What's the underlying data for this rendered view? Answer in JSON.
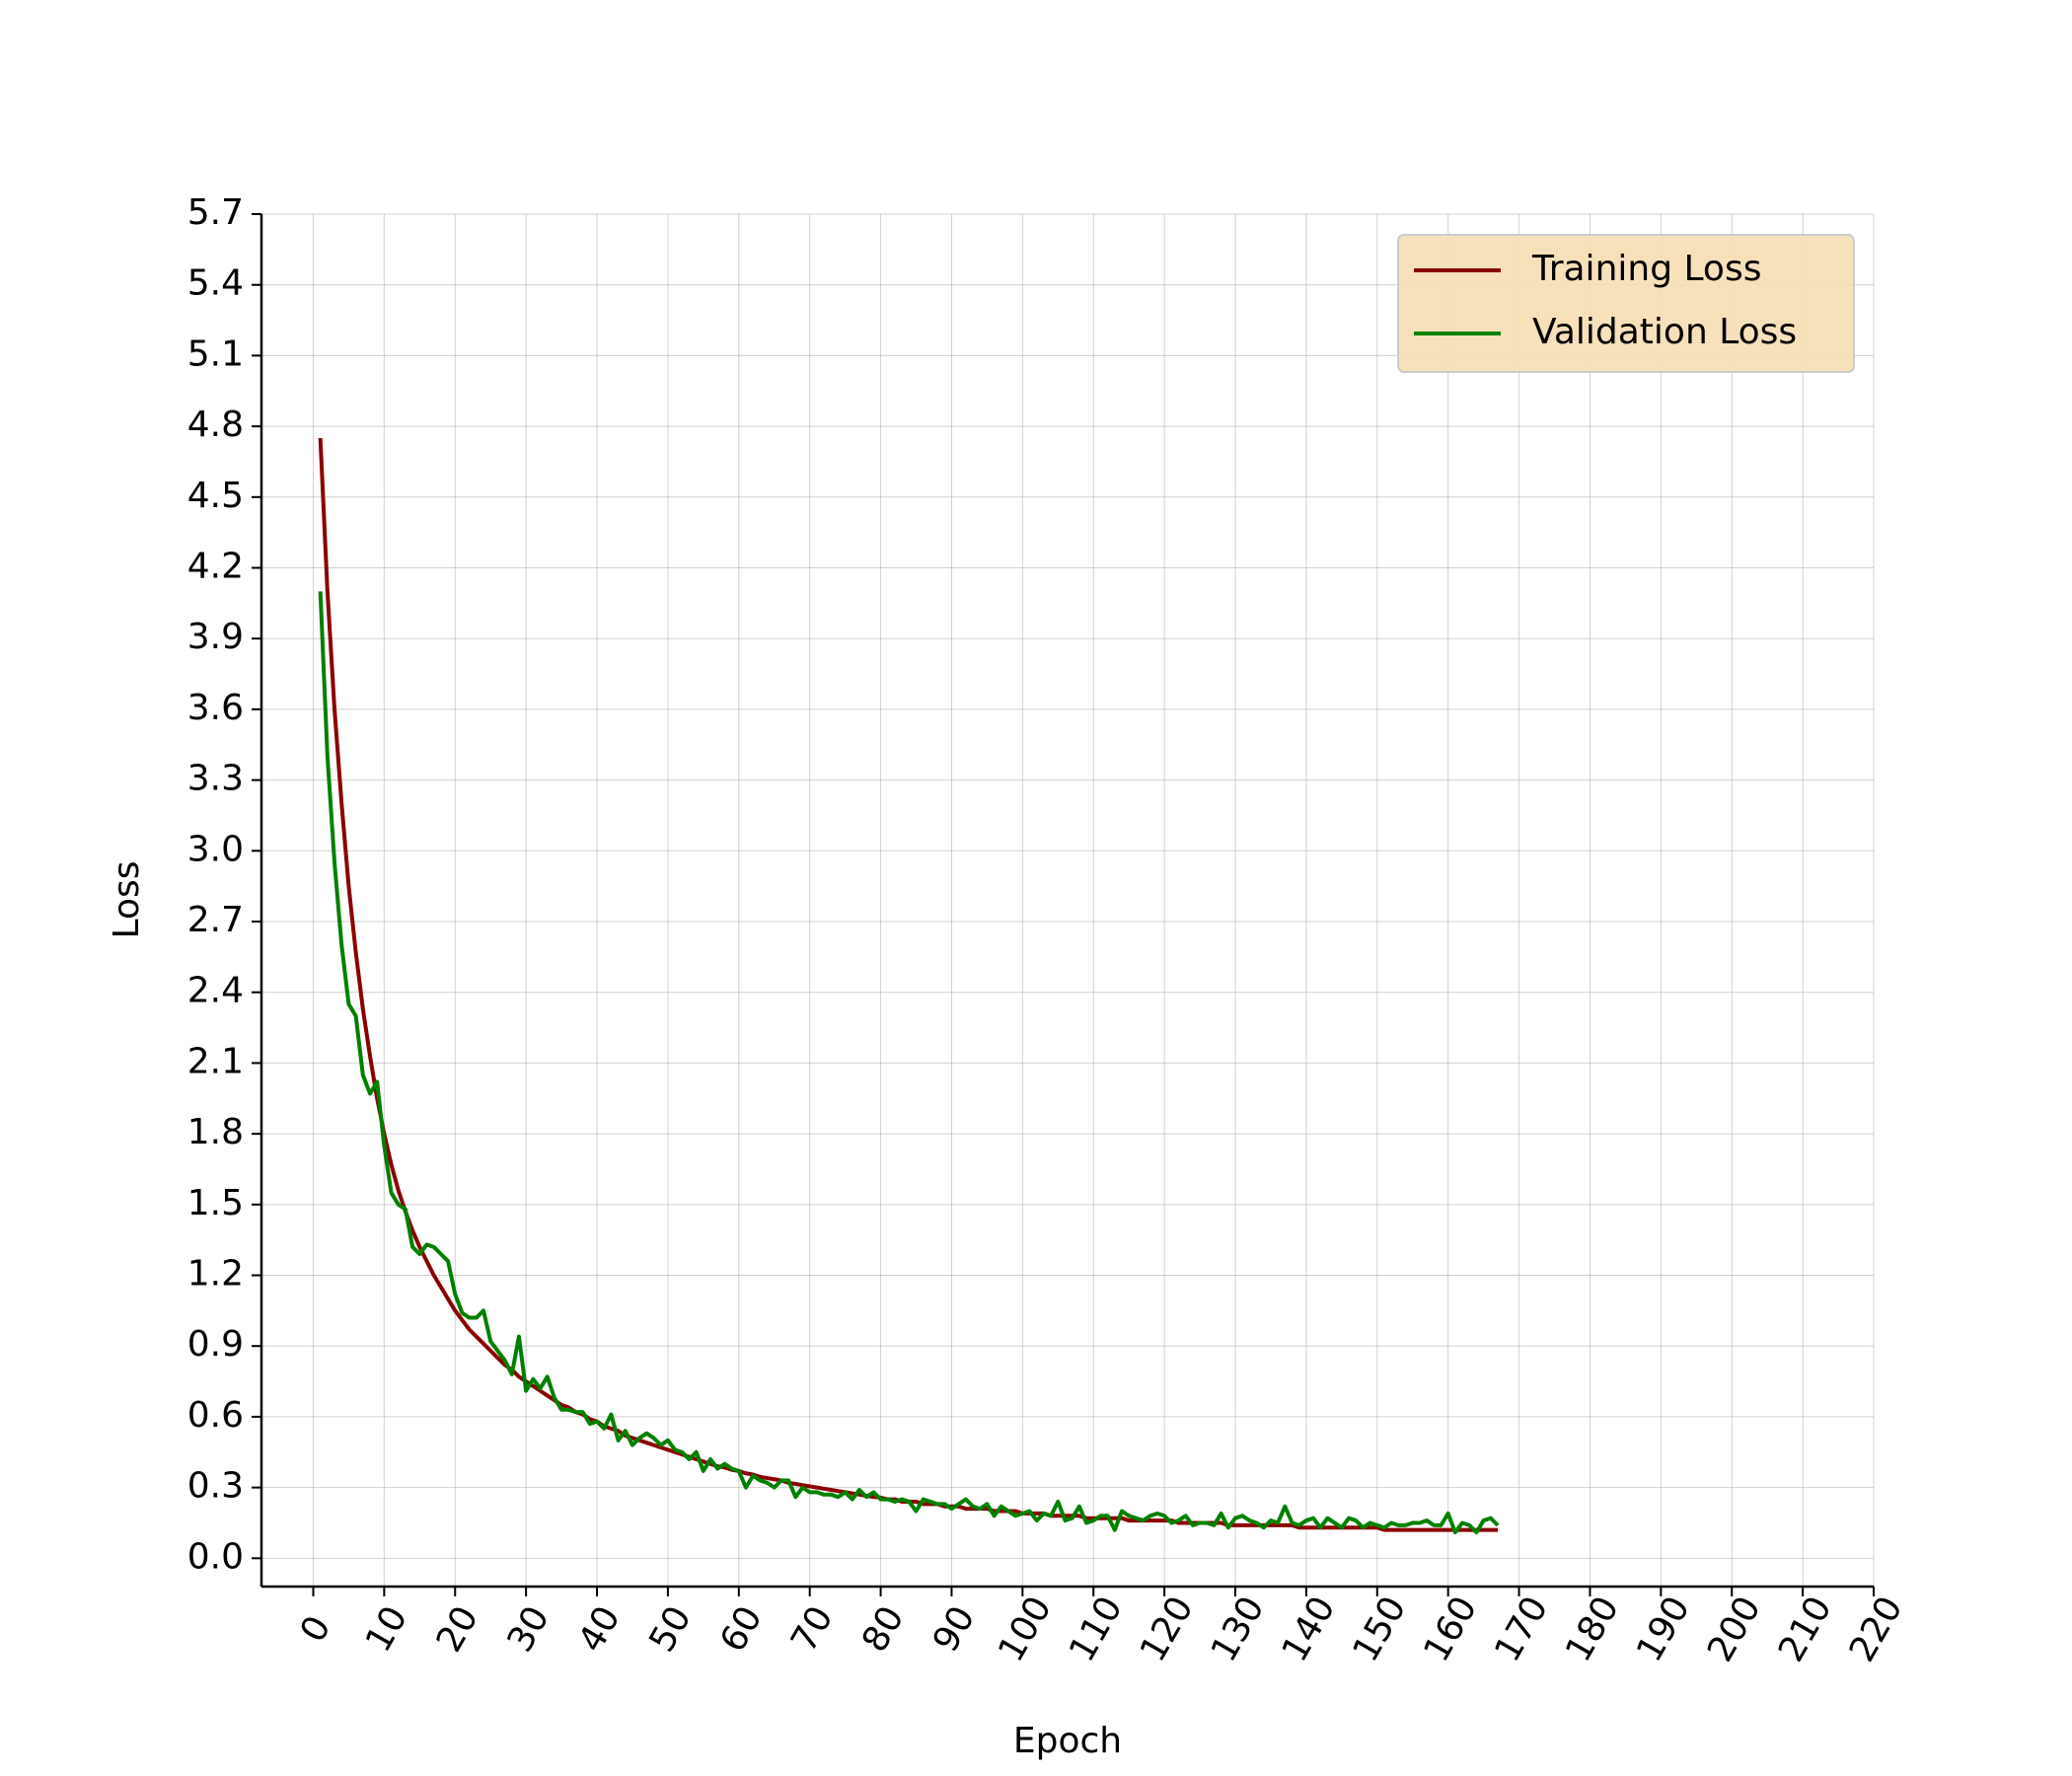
{
  "chart_data": {
    "type": "line",
    "x_label": "Epoch",
    "y_label": "Loss",
    "x": [
      1,
      2,
      3,
      4,
      5,
      6,
      7,
      8,
      9,
      10,
      11,
      12,
      13,
      14,
      15,
      16,
      17,
      18,
      19,
      20,
      21,
      22,
      23,
      24,
      25,
      26,
      27,
      28,
      29,
      30,
      31,
      32,
      33,
      34,
      35,
      36,
      37,
      38,
      39,
      40,
      41,
      42,
      43,
      44,
      45,
      46,
      47,
      48,
      49,
      50,
      51,
      52,
      53,
      54,
      55,
      56,
      57,
      58,
      59,
      60,
      61,
      62,
      63,
      64,
      65,
      66,
      67,
      68,
      69,
      70,
      71,
      72,
      73,
      74,
      75,
      76,
      77,
      78,
      79,
      80,
      81,
      82,
      83,
      84,
      85,
      86,
      87,
      88,
      89,
      90,
      91,
      92,
      93,
      94,
      95,
      96,
      97,
      98,
      99,
      100,
      101,
      102,
      103,
      104,
      105,
      106,
      107,
      108,
      109,
      110,
      111,
      112,
      113,
      114,
      115,
      116,
      117,
      118,
      119,
      120,
      121,
      122,
      123,
      124,
      125,
      126,
      127,
      128,
      129,
      130,
      131,
      132,
      133,
      134,
      135,
      136,
      137,
      138,
      139,
      140,
      141,
      142,
      143,
      144,
      145,
      146,
      147,
      148,
      149,
      150,
      151,
      152,
      153,
      154,
      155,
      156,
      157,
      158,
      159,
      160,
      161,
      162,
      163,
      164,
      165,
      166,
      167
    ],
    "series": [
      {
        "name": "Training Loss",
        "color": "#8b0000",
        "values": [
          4.75,
          4.1,
          3.6,
          3.2,
          2.85,
          2.57,
          2.33,
          2.13,
          1.95,
          1.8,
          1.67,
          1.56,
          1.47,
          1.39,
          1.32,
          1.26,
          1.2,
          1.15,
          1.1,
          1.05,
          1.01,
          0.97,
          0.94,
          0.91,
          0.88,
          0.85,
          0.82,
          0.8,
          0.77,
          0.75,
          0.73,
          0.71,
          0.69,
          0.67,
          0.65,
          0.64,
          0.62,
          0.61,
          0.59,
          0.58,
          0.56,
          0.55,
          0.54,
          0.52,
          0.51,
          0.5,
          0.49,
          0.48,
          0.47,
          0.46,
          0.45,
          0.44,
          0.43,
          0.42,
          0.41,
          0.4,
          0.39,
          0.385,
          0.375,
          0.37,
          0.36,
          0.355,
          0.345,
          0.34,
          0.335,
          0.33,
          0.32,
          0.315,
          0.31,
          0.305,
          0.3,
          0.295,
          0.29,
          0.285,
          0.28,
          0.275,
          0.27,
          0.265,
          0.26,
          0.257,
          0.25,
          0.25,
          0.24,
          0.24,
          0.24,
          0.23,
          0.23,
          0.23,
          0.22,
          0.22,
          0.22,
          0.21,
          0.21,
          0.21,
          0.21,
          0.2,
          0.2,
          0.2,
          0.2,
          0.19,
          0.19,
          0.19,
          0.19,
          0.18,
          0.18,
          0.18,
          0.18,
          0.18,
          0.17,
          0.17,
          0.17,
          0.17,
          0.17,
          0.17,
          0.16,
          0.16,
          0.16,
          0.16,
          0.16,
          0.16,
          0.16,
          0.15,
          0.15,
          0.15,
          0.15,
          0.15,
          0.15,
          0.15,
          0.14,
          0.14,
          0.14,
          0.14,
          0.14,
          0.14,
          0.14,
          0.14,
          0.14,
          0.14,
          0.13,
          0.13,
          0.13,
          0.13,
          0.13,
          0.13,
          0.13,
          0.13,
          0.13,
          0.13,
          0.13,
          0.13,
          0.12,
          0.12,
          0.12,
          0.12,
          0.12,
          0.12,
          0.12,
          0.12,
          0.12,
          0.12,
          0.12,
          0.12,
          0.12,
          0.12,
          0.12,
          0.12,
          0.12
        ]
      },
      {
        "name": "Validation Loss",
        "color": "#008000",
        "values": [
          4.1,
          3.4,
          2.95,
          2.6,
          2.35,
          2.3,
          2.05,
          1.97,
          2.02,
          1.75,
          1.55,
          1.5,
          1.48,
          1.32,
          1.29,
          1.33,
          1.32,
          1.29,
          1.26,
          1.12,
          1.04,
          1.02,
          1.02,
          1.05,
          0.92,
          0.88,
          0.84,
          0.78,
          0.94,
          0.71,
          0.76,
          0.72,
          0.77,
          0.68,
          0.63,
          0.63,
          0.62,
          0.62,
          0.57,
          0.58,
          0.55,
          0.61,
          0.5,
          0.54,
          0.48,
          0.51,
          0.53,
          0.51,
          0.48,
          0.5,
          0.46,
          0.45,
          0.42,
          0.45,
          0.37,
          0.42,
          0.38,
          0.4,
          0.38,
          0.37,
          0.3,
          0.35,
          0.33,
          0.32,
          0.3,
          0.33,
          0.33,
          0.26,
          0.3,
          0.28,
          0.28,
          0.27,
          0.27,
          0.26,
          0.28,
          0.25,
          0.29,
          0.26,
          0.28,
          0.25,
          0.25,
          0.24,
          0.25,
          0.24,
          0.2,
          0.25,
          0.24,
          0.23,
          0.23,
          0.21,
          0.23,
          0.25,
          0.22,
          0.21,
          0.23,
          0.18,
          0.22,
          0.2,
          0.18,
          0.19,
          0.2,
          0.16,
          0.19,
          0.18,
          0.24,
          0.16,
          0.17,
          0.22,
          0.15,
          0.16,
          0.18,
          0.18,
          0.12,
          0.2,
          0.18,
          0.17,
          0.16,
          0.18,
          0.19,
          0.18,
          0.15,
          0.16,
          0.18,
          0.14,
          0.15,
          0.15,
          0.14,
          0.19,
          0.13,
          0.17,
          0.18,
          0.16,
          0.15,
          0.13,
          0.16,
          0.15,
          0.22,
          0.15,
          0.14,
          0.16,
          0.17,
          0.13,
          0.17,
          0.15,
          0.13,
          0.17,
          0.16,
          0.13,
          0.15,
          0.14,
          0.13,
          0.15,
          0.14,
          0.14,
          0.15,
          0.15,
          0.16,
          0.14,
          0.14,
          0.19,
          0.11,
          0.15,
          0.14,
          0.11,
          0.16,
          0.17,
          0.14
        ]
      }
    ],
    "xlim": [
      -7.3,
      220
    ],
    "ylim": [
      -0.12,
      5.7
    ],
    "xticks": [
      0,
      10,
      20,
      30,
      40,
      50,
      60,
      70,
      80,
      90,
      100,
      110,
      120,
      130,
      140,
      150,
      160,
      170,
      180,
      190,
      200,
      210,
      220
    ],
    "yticks": [
      {
        "value": 0,
        "label": "0.0"
      },
      0.3,
      0.6,
      0.9,
      1.2,
      1.5,
      1.8,
      2.1,
      2.4,
      2.7,
      {
        "value": 3,
        "label": "3.0"
      },
      3.3,
      3.6,
      3.9,
      4.2,
      4.5,
      4.8,
      5.1,
      5.4,
      5.7
    ],
    "grid": true,
    "legend": "upper right",
    "legend_color": "#f5deb3"
  }
}
